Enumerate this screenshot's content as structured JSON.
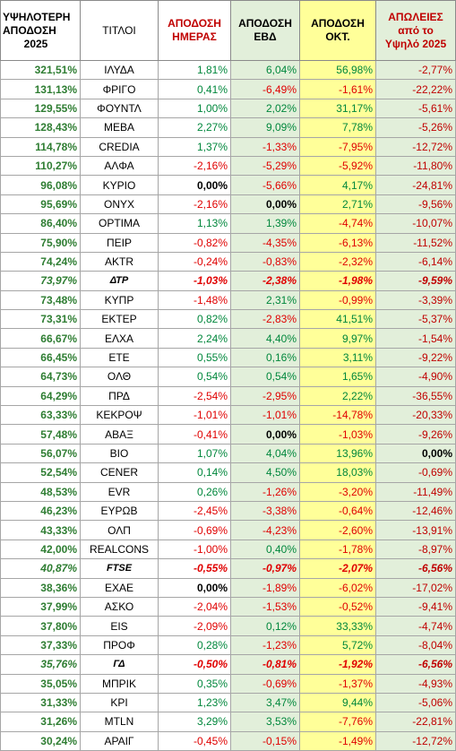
{
  "headers": {
    "peak": [
      "ΥΨΗΛΟΤΕΡΗ",
      "ΑΠΟΔΟΣΗ",
      "2025"
    ],
    "titles": "ΤΙΤΛΟΙ",
    "day": [
      "ΑΠΟΔΟΣΗ",
      "ΗΜΕΡΑΣ"
    ],
    "ebd": [
      "ΑΠΟΔΟΣΗ",
      "ΕΒΔ"
    ],
    "oct": [
      "ΑΠΟΔΟΣΗ",
      "ΟΚΤ."
    ],
    "loss": [
      "ΑΠΩΛΕΙΕΣ",
      "από το",
      "Υψηλό 2025"
    ]
  },
  "rows": [
    {
      "peak": "321,51%",
      "name": "ΙΛΥΔΑ",
      "day": "1,81%",
      "ebd": "6,04%",
      "oct": "56,98%",
      "loss": "-2,77%"
    },
    {
      "peak": "131,13%",
      "name": "ΦΡΙΓΟ",
      "day": "0,41%",
      "ebd": "-6,49%",
      "oct": "-1,61%",
      "loss": "-22,22%"
    },
    {
      "peak": "129,55%",
      "name": "ΦΟΥΝΤΛ",
      "day": "1,00%",
      "ebd": "2,02%",
      "oct": "31,17%",
      "loss": "-5,61%"
    },
    {
      "peak": "128,43%",
      "name": "ΜΕΒΑ",
      "day": "2,27%",
      "ebd": "9,09%",
      "oct": "7,78%",
      "loss": "-5,26%"
    },
    {
      "peak": "114,78%",
      "name": "CREDIA",
      "day": "1,37%",
      "ebd": "-1,33%",
      "oct": "-7,95%",
      "loss": "-12,72%"
    },
    {
      "peak": "110,27%",
      "name": "ΑΛΦΑ",
      "day": "-2,16%",
      "ebd": "-5,29%",
      "oct": "-5,92%",
      "loss": "-11,80%"
    },
    {
      "peak": "96,08%",
      "name": "ΚΥΡΙΟ",
      "day": "0,00%",
      "ebd": "-5,66%",
      "oct": "4,17%",
      "loss": "-24,81%"
    },
    {
      "peak": "95,69%",
      "name": "ΟΝΥΧ",
      "day": "-2,16%",
      "ebd": "0,00%",
      "oct": "2,71%",
      "loss": "-9,56%"
    },
    {
      "peak": "86,40%",
      "name": "ΟΡΤΙΜΑ",
      "day": "1,13%",
      "ebd": "1,39%",
      "oct": "-4,74%",
      "loss": "-10,07%"
    },
    {
      "peak": "75,90%",
      "name": "ΠΕΙΡ",
      "day": "-0,82%",
      "ebd": "-4,35%",
      "oct": "-6,13%",
      "loss": "-11,52%"
    },
    {
      "peak": "74,24%",
      "name": "ΑΚΤR",
      "day": "-0,24%",
      "ebd": "-0,83%",
      "oct": "-2,32%",
      "loss": "-6,14%"
    },
    {
      "peak": "73,97%",
      "name": "ΔΤΡ",
      "day": "-1,03%",
      "ebd": "-2,38%",
      "oct": "-1,98%",
      "loss": "-9,59%",
      "index": true
    },
    {
      "peak": "73,48%",
      "name": "ΚΥΠΡ",
      "day": "-1,48%",
      "ebd": "2,31%",
      "oct": "-0,99%",
      "loss": "-3,39%"
    },
    {
      "peak": "73,31%",
      "name": "ΕΚΤΕΡ",
      "day": "0,82%",
      "ebd": "-2,83%",
      "oct": "41,51%",
      "loss": "-5,37%"
    },
    {
      "peak": "66,67%",
      "name": "ΕΛΧΑ",
      "day": "2,24%",
      "ebd": "4,40%",
      "oct": "9,97%",
      "loss": "-1,54%"
    },
    {
      "peak": "66,45%",
      "name": "ΕΤΕ",
      "day": "0,55%",
      "ebd": "0,16%",
      "oct": "3,11%",
      "loss": "-9,22%"
    },
    {
      "peak": "64,73%",
      "name": "ΟΛΘ",
      "day": "0,54%",
      "ebd": "0,54%",
      "oct": "1,65%",
      "loss": "-4,90%"
    },
    {
      "peak": "64,29%",
      "name": "ΠΡΔ",
      "day": "-2,54%",
      "ebd": "-2,95%",
      "oct": "2,22%",
      "loss": "-36,55%"
    },
    {
      "peak": "63,33%",
      "name": "ΚΕΚΡΟΨ",
      "day": "-1,01%",
      "ebd": "-1,01%",
      "oct": "-14,78%",
      "loss": "-20,33%"
    },
    {
      "peak": "57,48%",
      "name": "ΑΒΑΞ",
      "day": "-0,41%",
      "ebd": "0,00%",
      "oct": "-1,03%",
      "loss": "-9,26%"
    },
    {
      "peak": "56,07%",
      "name": "ΒΙΟ",
      "day": "1,07%",
      "ebd": "4,04%",
      "oct": "13,96%",
      "loss": "0,00%"
    },
    {
      "peak": "52,54%",
      "name": "CENER",
      "day": "0,14%",
      "ebd": "4,50%",
      "oct": "18,03%",
      "loss": "-0,69%"
    },
    {
      "peak": "48,53%",
      "name": "EVR",
      "day": "0,26%",
      "ebd": "-1,26%",
      "oct": "-3,20%",
      "loss": "-11,49%"
    },
    {
      "peak": "46,23%",
      "name": "ΕΥΡΩΒ",
      "day": "-2,45%",
      "ebd": "-3,38%",
      "oct": "-0,64%",
      "loss": "-12,46%"
    },
    {
      "peak": "43,33%",
      "name": "ΟΛΠ",
      "day": "-0,69%",
      "ebd": "-4,23%",
      "oct": "-2,60%",
      "loss": "-13,91%"
    },
    {
      "peak": "42,00%",
      "name": "REALCONS",
      "day": "-1,00%",
      "ebd": "0,40%",
      "oct": "-1,78%",
      "loss": "-8,97%"
    },
    {
      "peak": "40,87%",
      "name": "FTSE",
      "day": "-0,55%",
      "ebd": "-0,97%",
      "oct": "-2,07%",
      "loss": "-6,56%",
      "index": true
    },
    {
      "peak": "38,36%",
      "name": "ΕΧΑΕ",
      "day": "0,00%",
      "ebd": "-1,89%",
      "oct": "-6,02%",
      "loss": "-17,02%"
    },
    {
      "peak": "37,99%",
      "name": "ΑΣΚΟ",
      "day": "-2,04%",
      "ebd": "-1,53%",
      "oct": "-0,52%",
      "loss": "-9,41%"
    },
    {
      "peak": "37,80%",
      "name": "EIS",
      "day": "-2,09%",
      "ebd": "0,12%",
      "oct": "33,33%",
      "loss": "-4,74%"
    },
    {
      "peak": "37,33%",
      "name": "ΠΡΟΦ",
      "day": "0,28%",
      "ebd": "-1,23%",
      "oct": "5,72%",
      "loss": "-8,04%"
    },
    {
      "peak": "35,76%",
      "name": "ΓΔ",
      "day": "-0,50%",
      "ebd": "-0,81%",
      "oct": "-1,92%",
      "loss": "-6,56%",
      "index": true
    },
    {
      "peak": "35,05%",
      "name": "ΜΠΡΙΚ",
      "day": "0,35%",
      "ebd": "-0,69%",
      "oct": "-1,37%",
      "loss": "-4,93%"
    },
    {
      "peak": "31,33%",
      "name": "ΚΡΙ",
      "day": "1,23%",
      "ebd": "3,47%",
      "oct": "9,44%",
      "loss": "-5,06%"
    },
    {
      "peak": "31,26%",
      "name": "MTLN",
      "day": "3,29%",
      "ebd": "3,53%",
      "oct": "-7,76%",
      "loss": "-22,81%"
    },
    {
      "peak": "30,24%",
      "name": "ΑΡΑΙΓ",
      "day": "-0,45%",
      "ebd": "-0,15%",
      "oct": "-1,49%",
      "loss": "-12,72%"
    }
  ]
}
